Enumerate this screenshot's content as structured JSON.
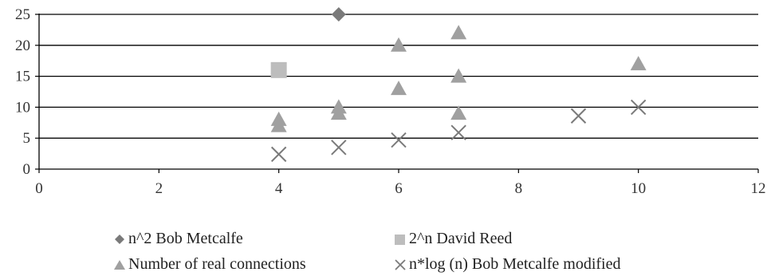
{
  "chart_data": {
    "type": "scatter",
    "title": "",
    "xlabel": "",
    "ylabel": "",
    "xlim": [
      0,
      12
    ],
    "ylim": [
      0,
      25
    ],
    "x_ticks": [
      0,
      2,
      4,
      6,
      8,
      10,
      12
    ],
    "y_ticks": [
      0,
      5,
      10,
      15,
      20,
      25
    ],
    "grid": "horizontal",
    "legend_position": "bottom",
    "series": [
      {
        "name": "n^2 Bob Metcalfe",
        "marker": "diamond",
        "color": "#7a7a7a",
        "points": [
          [
            5,
            25
          ]
        ]
      },
      {
        "name": "2^n David Reed",
        "marker": "square",
        "color": "#bdbdbd",
        "points": [
          [
            4,
            16
          ]
        ]
      },
      {
        "name": "Number of real connections",
        "marker": "triangle",
        "color": "#a0a0a0",
        "points": [
          [
            4,
            7
          ],
          [
            4,
            8
          ],
          [
            5,
            9
          ],
          [
            5,
            10
          ],
          [
            6,
            13
          ],
          [
            6,
            20
          ],
          [
            7,
            9
          ],
          [
            7,
            15
          ],
          [
            7,
            22
          ],
          [
            10,
            17
          ]
        ]
      },
      {
        "name": "n*log (n) Bob Metcalfe modified",
        "marker": "x",
        "color": "#7a7a7a",
        "points": [
          [
            4,
            2.4
          ],
          [
            5,
            3.5
          ],
          [
            6,
            4.7
          ],
          [
            7,
            5.9
          ],
          [
            9,
            8.6
          ],
          [
            10,
            10
          ]
        ]
      }
    ]
  }
}
